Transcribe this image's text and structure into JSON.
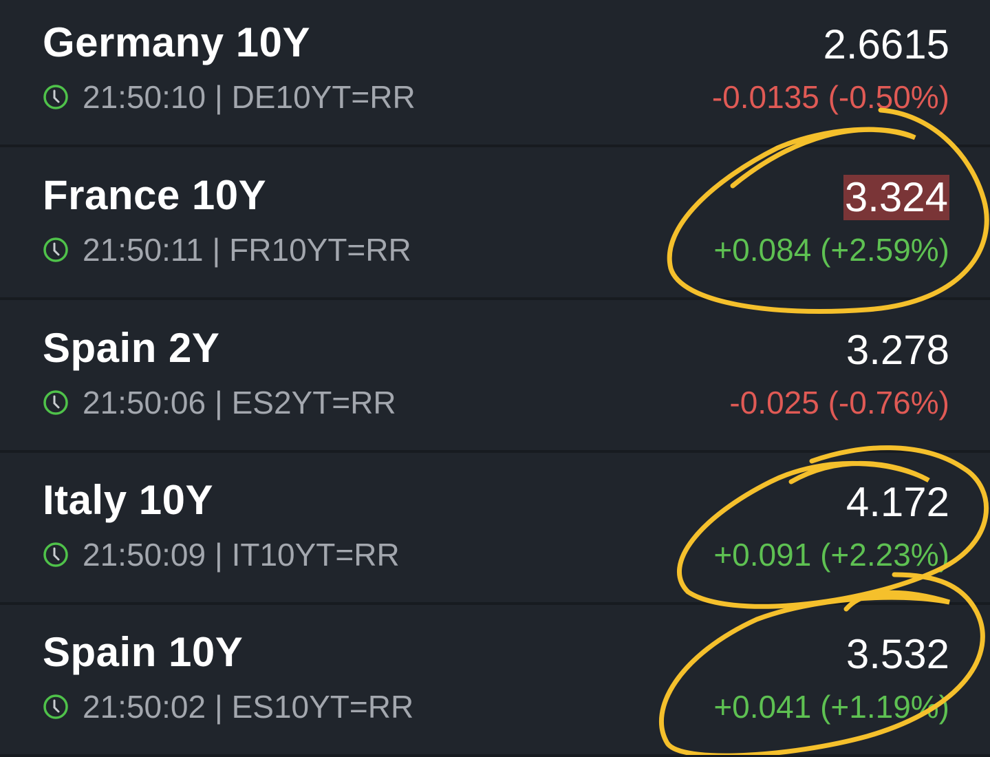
{
  "colors": {
    "background": "#20252c",
    "positive": "#5ec152",
    "negative": "#e05a55",
    "flash": "#7a3537",
    "annotation": "#f5c02c"
  },
  "rows": [
    {
      "name": "Germany 10Y",
      "time": "21:50:10",
      "ric": "DE10YT=RR",
      "separator": " | ",
      "price": "2.6615",
      "change": "-0.0135 (-0.50%)",
      "direction": "neg"
    },
    {
      "name": "France 10Y",
      "time": "21:50:11",
      "ric": "FR10YT=RR",
      "separator": " | ",
      "price": "3.324",
      "change": "+0.084 (+2.59%)",
      "direction": "pos",
      "flash": true
    },
    {
      "name": "Spain 2Y",
      "time": "21:50:06",
      "ric": "ES2YT=RR",
      "separator": " | ",
      "price": "3.278",
      "change": "-0.025 (-0.76%)",
      "direction": "neg"
    },
    {
      "name": "Italy 10Y",
      "time": "21:50:09",
      "ric": "IT10YT=RR",
      "separator": " | ",
      "price": "4.172",
      "change": "+0.091 (+2.23%)",
      "direction": "pos"
    },
    {
      "name": "Spain 10Y",
      "time": "21:50:02",
      "ric": "ES10YT=RR",
      "separator": " | ",
      "price": "3.532",
      "change": "+0.041 (+1.19%)",
      "direction": "pos"
    }
  ]
}
